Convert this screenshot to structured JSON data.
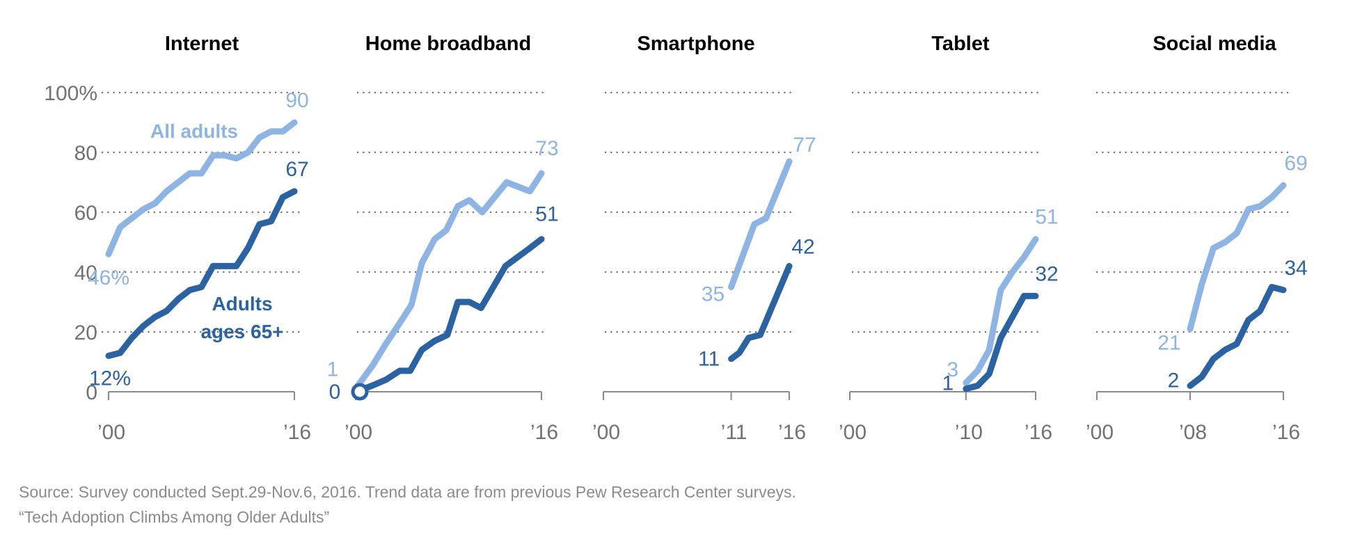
{
  "chart_data": {
    "type": "line",
    "title": "",
    "ylabel": "",
    "ylim": [
      0,
      100
    ],
    "yticks": [
      "100%",
      "80",
      "60",
      "40",
      "20",
      "0"
    ],
    "ytick_values": [
      100,
      80,
      60,
      40,
      20,
      0
    ],
    "grid": true,
    "colors": {
      "all_adults": "#8db4e2",
      "adults_65_plus": "#2b62a1"
    },
    "series_names": {
      "all_adults": "All adults",
      "adults_65_plus_line1": "Adults",
      "adults_65_plus_line2": "ages 65+"
    },
    "panels": [
      {
        "title": "Internet",
        "xlim": [
          2000,
          2016
        ],
        "xticks": [
          {
            "year": 2000,
            "label": "’00"
          },
          {
            "year": 2016,
            "label": "’16"
          }
        ],
        "series": [
          {
            "name": "All adults",
            "x": [
              2000,
              2001,
              2002,
              2003,
              2004,
              2005,
              2006,
              2007,
              2008,
              2009,
              2010,
              2011,
              2012,
              2013,
              2014,
              2015,
              2016
            ],
            "values": [
              46,
              55,
              58,
              61,
              63,
              67,
              70,
              73,
              73,
              79,
              79,
              78,
              80,
              85,
              87,
              87,
              90
            ],
            "start_label": "46%",
            "end_label": "90"
          },
          {
            "name": "Adults ages 65+",
            "x": [
              2000,
              2001,
              2002,
              2003,
              2004,
              2005,
              2006,
              2007,
              2008,
              2009,
              2010,
              2011,
              2012,
              2013,
              2014,
              2015,
              2016
            ],
            "values": [
              12,
              13,
              18,
              22,
              25,
              27,
              31,
              34,
              35,
              42,
              42,
              42,
              48,
              56,
              57,
              65,
              67
            ],
            "start_label": "12%",
            "end_label": "67"
          }
        ]
      },
      {
        "title": "Home broadband",
        "xlim": [
          2000,
          2016
        ],
        "xticks": [
          {
            "year": 2000,
            "label": "’00"
          },
          {
            "year": 2016,
            "label": "’16"
          }
        ],
        "series": [
          {
            "name": "All adults",
            "x": [
              2000,
              2001.5,
              2002.6,
              2003.8,
              2004.8,
              2005.7,
              2006.8,
              2007.8,
              2008.8,
              2009.8,
              2010.9,
              2013,
              2015,
              2016
            ],
            "values": [
              1,
              9,
              16,
              23,
              29,
              43,
              51,
              54,
              62,
              64,
              60,
              70,
              67,
              73
            ],
            "start_label": "1",
            "end_label": "73"
          },
          {
            "name": "Adults ages 65+",
            "x": [
              2000,
              2001.4,
              2002.6,
              2003.8,
              2004.7,
              2005.7,
              2006.8,
              2007.9,
              2008.8,
              2009.8,
              2010.8,
              2012.9,
              2015,
              2016
            ],
            "values": [
              0,
              2,
              4,
              7,
              7,
              14,
              17,
              19,
              30,
              30,
              28,
              42,
              48,
              51
            ],
            "start_label": "0",
            "end_label": "51",
            "start_marker": "open-circle"
          }
        ]
      },
      {
        "title": "Smartphone",
        "xlim": [
          2000,
          2016
        ],
        "xticks": [
          {
            "year": 2000,
            "label": "’00"
          },
          {
            "year": 2011,
            "label": "’11"
          },
          {
            "year": 2016,
            "label": "’16"
          }
        ],
        "series": [
          {
            "name": "All adults",
            "x": [
              2011,
              2013,
              2014,
              2016
            ],
            "values": [
              35,
              56,
              58,
              77
            ],
            "start_label": "35",
            "end_label": "77"
          },
          {
            "name": "Adults ages 65+",
            "x": [
              2011,
              2011.7,
              2012.5,
              2013.5,
              2016
            ],
            "values": [
              11,
              13,
              18,
              19,
              42
            ],
            "start_label": "11",
            "end_label": "42"
          }
        ]
      },
      {
        "title": "Tablet",
        "xlim": [
          2000,
          2016
        ],
        "xticks": [
          {
            "year": 2000,
            "label": "’00"
          },
          {
            "year": 2010,
            "label": "’10"
          },
          {
            "year": 2016,
            "label": "’16"
          }
        ],
        "series": [
          {
            "name": "All adults",
            "x": [
              2010,
              2011,
              2012,
              2013,
              2014,
              2015,
              2016
            ],
            "values": [
              3,
              7,
              14,
              34,
              40,
              45,
              51
            ],
            "start_label": "3",
            "end_label": "51"
          },
          {
            "name": "Adults ages 65+",
            "x": [
              2010,
              2011,
              2012,
              2013,
              2014,
              2015,
              2016
            ],
            "values": [
              1,
              2,
              6,
              18,
              25,
              32,
              32
            ],
            "start_label": "1",
            "end_label": "32"
          }
        ]
      },
      {
        "title": "Social media",
        "xlim": [
          2000,
          2016
        ],
        "xticks": [
          {
            "year": 2000,
            "label": "’00"
          },
          {
            "year": 2008,
            "label": "’08"
          },
          {
            "year": 2016,
            "label": "’16"
          }
        ],
        "series": [
          {
            "name": "All adults",
            "x": [
              2008,
              2009,
              2010,
              2011,
              2012,
              2013,
              2014,
              2015,
              2016
            ],
            "values": [
              21,
              36,
              48,
              50,
              53,
              61,
              62,
              65,
              69
            ],
            "start_label": "21",
            "end_label": "69"
          },
          {
            "name": "Adults ages 65+",
            "x": [
              2008,
              2009,
              2010,
              2011,
              2012,
              2013,
              2014,
              2015,
              2016
            ],
            "values": [
              2,
              5,
              11,
              14,
              16,
              24,
              27,
              35,
              34
            ],
            "start_label": "2",
            "end_label": "34"
          }
        ]
      }
    ]
  },
  "footer": {
    "source": "Source: Survey conducted Sept.29-Nov.6, 2016. Trend data are from previous Pew Research Center surveys.",
    "report_title": "“Tech Adoption Climbs Among Older Adults”"
  }
}
